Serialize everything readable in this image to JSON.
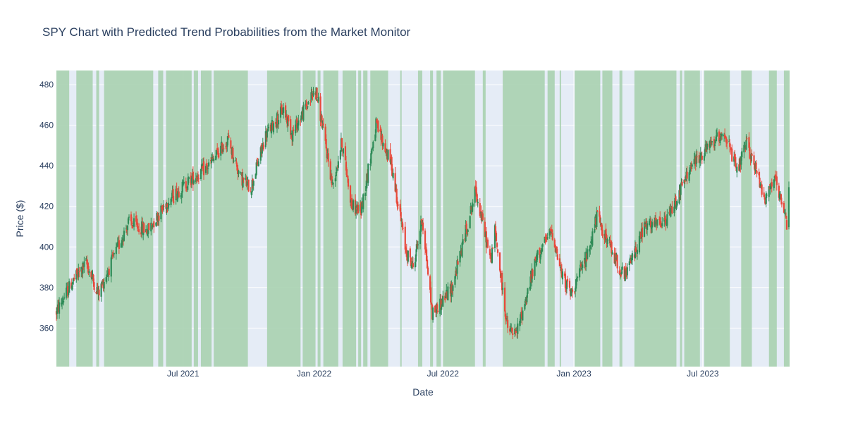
{
  "chart_data": {
    "type": "candlestick",
    "title": "SPY Chart with Predicted Trend Probabilities from the Market Monitor",
    "xlabel": "Date",
    "ylabel": "Price ($)",
    "x_range": [
      "2021-01-04",
      "2023-10-31"
    ],
    "ylim": [
      341,
      487
    ],
    "x_ticks": [
      {
        "date": "2021-07-01",
        "label": "Jul 2021"
      },
      {
        "date": "2022-01-01",
        "label": "Jan 2022"
      },
      {
        "date": "2022-07-01",
        "label": "Jul 2022"
      },
      {
        "date": "2023-01-01",
        "label": "Jan 2023"
      },
      {
        "date": "2023-07-01",
        "label": "Jul 2023"
      }
    ],
    "y_ticks": [
      360,
      380,
      400,
      420,
      440,
      460,
      480
    ],
    "colors": {
      "increasing": "#2e8b57",
      "decreasing": "#e8483a",
      "highlight": "#a8d1b0",
      "plot_bg": "#e5ecf6",
      "grid": "#ffffff"
    },
    "price_path": [
      [
        "2021-01-04",
        368
      ],
      [
        "2021-01-25",
        382
      ],
      [
        "2021-02-15",
        392
      ],
      [
        "2021-03-04",
        377
      ],
      [
        "2021-03-22",
        392
      ],
      [
        "2021-04-15",
        412
      ],
      [
        "2021-05-12",
        408
      ],
      [
        "2021-06-10",
        423
      ],
      [
        "2021-07-08",
        432
      ],
      [
        "2021-08-06",
        440
      ],
      [
        "2021-09-02",
        453
      ],
      [
        "2021-09-20",
        434
      ],
      [
        "2021-10-04",
        429
      ],
      [
        "2021-10-25",
        455
      ],
      [
        "2021-11-19",
        468
      ],
      [
        "2021-12-01",
        456
      ],
      [
        "2022-01-03",
        478
      ],
      [
        "2022-01-10",
        465
      ],
      [
        "2022-01-27",
        430
      ],
      [
        "2022-02-09",
        452
      ],
      [
        "2022-02-23",
        420
      ],
      [
        "2022-03-08",
        418
      ],
      [
        "2022-03-29",
        460
      ],
      [
        "2022-04-20",
        440
      ],
      [
        "2022-05-10",
        398
      ],
      [
        "2022-05-20",
        390
      ],
      [
        "2022-06-02",
        414
      ],
      [
        "2022-06-16",
        367
      ],
      [
        "2022-07-14",
        380
      ],
      [
        "2022-08-16",
        428
      ],
      [
        "2022-09-06",
        393
      ],
      [
        "2022-09-12",
        408
      ],
      [
        "2022-09-30",
        359
      ],
      [
        "2022-10-12",
        357
      ],
      [
        "2022-11-10",
        395
      ],
      [
        "2022-12-01",
        408
      ],
      [
        "2022-12-15",
        386
      ],
      [
        "2022-12-28",
        377
      ],
      [
        "2023-01-20",
        396
      ],
      [
        "2023-02-02",
        415
      ],
      [
        "2023-02-23",
        398
      ],
      [
        "2023-03-13",
        385
      ],
      [
        "2023-04-10",
        410
      ],
      [
        "2023-05-10",
        412
      ],
      [
        "2023-06-15",
        440
      ],
      [
        "2023-07-31",
        457
      ],
      [
        "2023-08-18",
        437
      ],
      [
        "2023-09-01",
        451
      ],
      [
        "2023-09-27",
        424
      ],
      [
        "2023-10-09",
        434
      ],
      [
        "2023-10-27",
        411
      ],
      [
        "2023-10-31",
        436
      ]
    ],
    "green_regions": [
      [
        "2021-01-04",
        "2021-01-22"
      ],
      [
        "2021-02-01",
        "2021-02-24"
      ],
      [
        "2021-03-01",
        "2021-03-05"
      ],
      [
        "2021-03-12",
        "2021-05-20"
      ],
      [
        "2021-05-27",
        "2021-06-03"
      ],
      [
        "2021-06-07",
        "2021-07-13"
      ],
      [
        "2021-07-16",
        "2021-07-22"
      ],
      [
        "2021-07-26",
        "2021-08-10"
      ],
      [
        "2021-08-13",
        "2021-09-30"
      ],
      [
        "2021-10-27",
        "2021-12-13"
      ],
      [
        "2021-12-16",
        "2022-01-03"
      ],
      [
        "2022-01-06",
        "2022-01-10"
      ],
      [
        "2022-01-14",
        "2022-02-04"
      ],
      [
        "2022-02-10",
        "2022-03-01"
      ],
      [
        "2022-03-04",
        "2022-03-08"
      ],
      [
        "2022-03-11",
        "2022-03-17"
      ],
      [
        "2022-03-21",
        "2022-04-15"
      ],
      [
        "2022-05-02",
        "2022-05-04"
      ],
      [
        "2022-05-27",
        "2022-06-02"
      ],
      [
        "2022-06-13",
        "2022-06-17"
      ],
      [
        "2022-06-22",
        "2022-06-28"
      ],
      [
        "2022-07-01",
        "2022-08-15"
      ],
      [
        "2022-08-26",
        "2022-08-30"
      ],
      [
        "2022-09-23",
        "2022-11-21"
      ],
      [
        "2022-11-25",
        "2022-12-05"
      ],
      [
        "2022-12-12",
        "2022-12-14"
      ],
      [
        "2023-01-02",
        "2023-02-07"
      ],
      [
        "2023-02-10",
        "2023-02-24"
      ],
      [
        "2023-03-06",
        "2023-03-10"
      ],
      [
        "2023-03-27",
        "2023-05-25"
      ],
      [
        "2023-05-30",
        "2023-06-02"
      ],
      [
        "2023-06-05",
        "2023-06-27"
      ],
      [
        "2023-07-03",
        "2023-08-08"
      ],
      [
        "2023-08-24",
        "2023-09-08"
      ],
      [
        "2023-10-02",
        "2023-10-13"
      ],
      [
        "2023-10-23",
        "2023-10-31"
      ]
    ]
  }
}
